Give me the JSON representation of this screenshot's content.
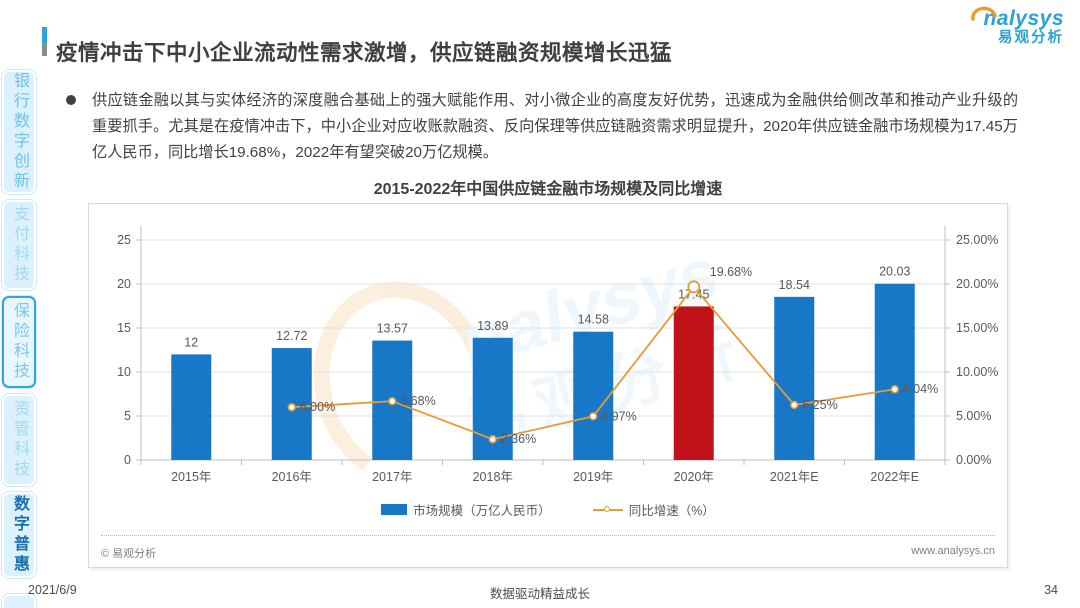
{
  "sidebar": {
    "tabs": [
      {
        "label": "银行数字创新",
        "state": "normal"
      },
      {
        "label": "支付科技",
        "state": "muted"
      },
      {
        "label": "保险科技",
        "state": "active"
      },
      {
        "label": "资管科技",
        "state": "muted"
      },
      {
        "label": "数字普惠",
        "state": "current"
      }
    ]
  },
  "header": {
    "title": "疫情冲击下中小企业流动性需求激增，供应链融资规模增长迅猛",
    "logo_primary": "nalysys",
    "logo_secondary": "易观分析"
  },
  "body": {
    "bullet_text": "供应链金融以其与实体经济的深度融合基础上的强大赋能作用、对小微企业的高度友好优势，迅速成为金融供给侧改革和推动产业升级的重要抓手。尤其是在疫情冲击下，中小企业对应收账款融资、反向保理等供应链融资需求明显提升，2020年供应链金融市场规模为17.45万亿人民币，同比增长19.68%，2022年有望突破20万亿规模。"
  },
  "chart_data": {
    "type": "bar",
    "title": "2015-2022年中国供应链金融市场规模及同比增速",
    "categories": [
      "2015年",
      "2016年",
      "2017年",
      "2018年",
      "2019年",
      "2020年",
      "2021年E",
      "2022年E"
    ],
    "series": [
      {
        "name": "市场规模（万亿人民币）",
        "type": "bar",
        "values": [
          12,
          12.72,
          13.57,
          13.89,
          14.58,
          17.45,
          18.54,
          20.03
        ],
        "labels": [
          "12",
          "12.72",
          "13.57",
          "13.89",
          "14.58",
          "17.45",
          "18.54",
          "20.03"
        ],
        "color": "#1778c8",
        "highlight_index": 5,
        "highlight_color": "#c1121a"
      },
      {
        "name": "同比增速（%）",
        "type": "line",
        "values": [
          null,
          6.0,
          6.68,
          2.36,
          4.97,
          19.68,
          6.25,
          8.04
        ],
        "labels": [
          "",
          "6.00%",
          "6.68%",
          "2.36%",
          "4.97%",
          "19.68%",
          "6.25%",
          "8.04%"
        ],
        "color": "#e89b33"
      }
    ],
    "left_axis": {
      "min": 0,
      "max": 25,
      "step": 5,
      "ticks": [
        "0",
        "5",
        "10",
        "15",
        "20",
        "25"
      ]
    },
    "right_axis": {
      "min": 0,
      "max": 25,
      "step": 5,
      "ticks": [
        "0.00%",
        "5.00%",
        "10.00%",
        "15.00%",
        "20.00%",
        "25.00%"
      ]
    },
    "legend": [
      "市场规模（万亿人民币）",
      "同比增速（%）"
    ],
    "legend_position": "bottom",
    "grid": true,
    "watermark_primary": "nalysys",
    "watermark_secondary": "易观分析",
    "axis_color": "#595959",
    "grid_color": "#e2e2e2"
  },
  "chart_card": {
    "copyright": "© 易观分析",
    "website": "www.analysys.cn"
  },
  "footer": {
    "date": "2021/6/9",
    "slogan": "数据驱动精益成长",
    "page_number": "34"
  }
}
